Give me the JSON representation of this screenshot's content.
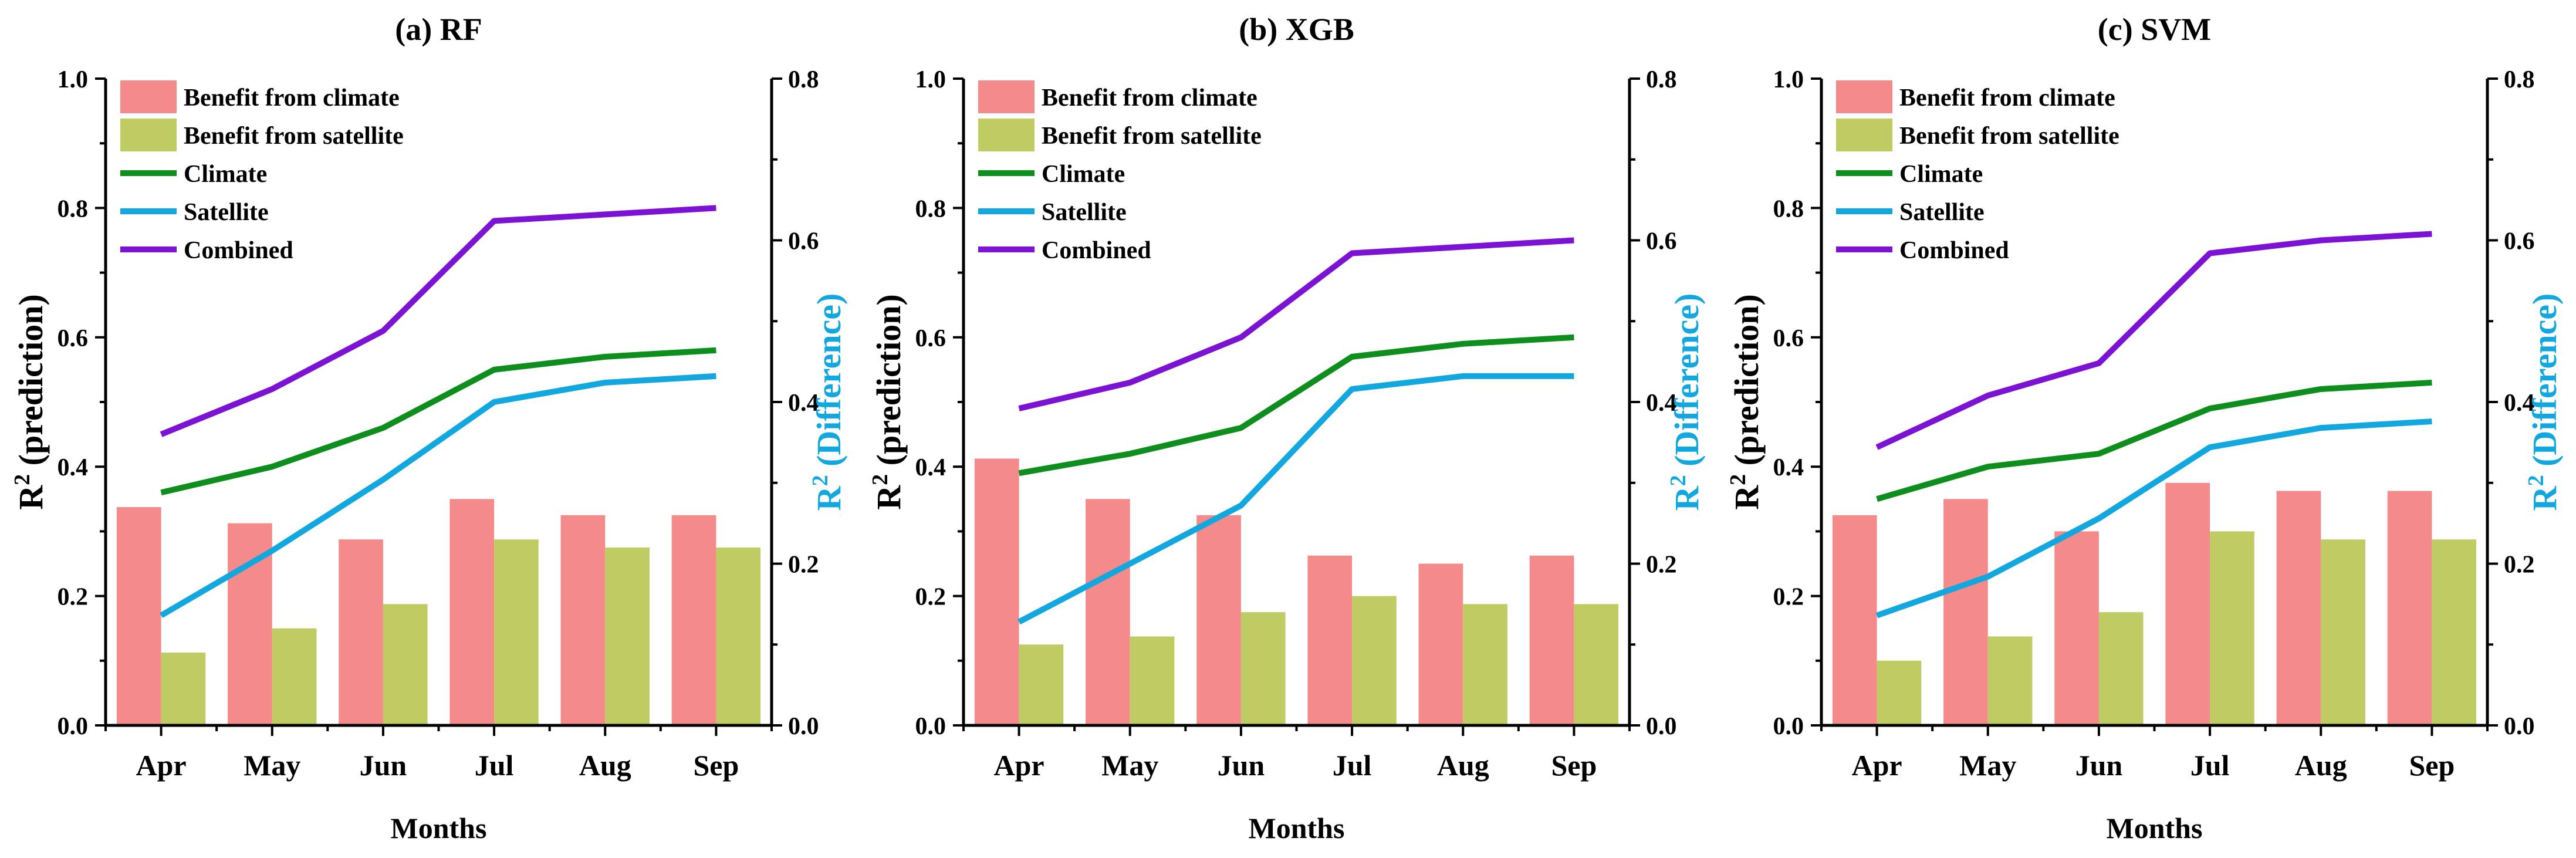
{
  "figure": {
    "colors": {
      "climate_bar": "#F48A8A",
      "satellite_bar": "#BFCC63",
      "climate_line": "#0E8E1C",
      "satellite_line": "#12A7DF",
      "combined_line": "#7B12D4",
      "right_axis_label": "#12A7DF",
      "axis": "#000000"
    }
  },
  "chart_data": [
    {
      "type": "bar+line",
      "title": "(a) RF",
      "xlabel": "Months",
      "ylabel_left": "R² (prediction)",
      "ylabel_left_parts": {
        "base": "R",
        "sup": "2",
        "rest": " (prediction)"
      },
      "ylabel_right": "R² (Difference)",
      "ylabel_right_parts": {
        "base": "R",
        "sup": "2",
        "rest": " (Difference)"
      },
      "ylim_left": [
        0,
        1.0
      ],
      "ylim_right": [
        0,
        0.8
      ],
      "yticks_left": [
        "0.0",
        "0.2",
        "0.4",
        "0.6",
        "0.8",
        "1.0"
      ],
      "yticks_right": [
        "0.0",
        "0.2",
        "0.4",
        "0.6",
        "0.8"
      ],
      "categories": [
        "Apr",
        "May",
        "Jun",
        "Jul",
        "Aug",
        "Sep"
      ],
      "legend": [
        "Benefit from climate",
        "Benefit from satellite",
        "Climate",
        "Satellite",
        "Combined"
      ],
      "bars": [
        {
          "name": "Benefit from climate",
          "axis": "right",
          "values": [
            0.27,
            0.25,
            0.23,
            0.28,
            0.26,
            0.26
          ]
        },
        {
          "name": "Benefit from satellite",
          "axis": "right",
          "values": [
            0.09,
            0.12,
            0.15,
            0.23,
            0.22,
            0.22
          ]
        }
      ],
      "series": [
        {
          "name": "Climate",
          "axis": "left",
          "values": [
            0.36,
            0.4,
            0.46,
            0.55,
            0.57,
            0.58
          ]
        },
        {
          "name": "Satellite",
          "axis": "left",
          "values": [
            0.17,
            0.27,
            0.38,
            0.5,
            0.53,
            0.54
          ]
        },
        {
          "name": "Combined",
          "axis": "left",
          "values": [
            0.45,
            0.52,
            0.61,
            0.78,
            0.79,
            0.8
          ]
        }
      ]
    },
    {
      "type": "bar+line",
      "title": "(b) XGB",
      "xlabel": "Months",
      "ylabel_left": "R² (prediction)",
      "ylabel_left_parts": {
        "base": "R",
        "sup": "2",
        "rest": " (prediction)"
      },
      "ylabel_right": "R² (Difference)",
      "ylabel_right_parts": {
        "base": "R",
        "sup": "2",
        "rest": " (Difference)"
      },
      "ylim_left": [
        0,
        1.0
      ],
      "ylim_right": [
        0,
        0.8
      ],
      "yticks_left": [
        "0.0",
        "0.2",
        "0.4",
        "0.6",
        "0.8",
        "1.0"
      ],
      "yticks_right": [
        "0.0",
        "0.2",
        "0.4",
        "0.6",
        "0.8"
      ],
      "categories": [
        "Apr",
        "May",
        "Jun",
        "Jul",
        "Aug",
        "Sep"
      ],
      "legend": [
        "Benefit from climate",
        "Benefit from satellite",
        "Climate",
        "Satellite",
        "Combined"
      ],
      "bars": [
        {
          "name": "Benefit from climate",
          "axis": "right",
          "values": [
            0.33,
            0.28,
            0.26,
            0.21,
            0.2,
            0.21
          ]
        },
        {
          "name": "Benefit from satellite",
          "axis": "right",
          "values": [
            0.1,
            0.11,
            0.14,
            0.16,
            0.15,
            0.15
          ]
        }
      ],
      "series": [
        {
          "name": "Climate",
          "axis": "left",
          "values": [
            0.39,
            0.42,
            0.46,
            0.57,
            0.59,
            0.6
          ]
        },
        {
          "name": "Satellite",
          "axis": "left",
          "values": [
            0.16,
            0.25,
            0.34,
            0.52,
            0.54,
            0.54
          ]
        },
        {
          "name": "Combined",
          "axis": "left",
          "values": [
            0.49,
            0.53,
            0.6,
            0.73,
            0.74,
            0.75
          ]
        }
      ]
    },
    {
      "type": "bar+line",
      "title": "(c) SVM",
      "xlabel": "Months",
      "ylabel_left": "R² (prediction)",
      "ylabel_left_parts": {
        "base": "R",
        "sup": "2",
        "rest": " (prediction)"
      },
      "ylabel_right": "R² (Difference)",
      "ylabel_right_parts": {
        "base": "R",
        "sup": "2",
        "rest": " (Difference)"
      },
      "ylim_left": [
        0,
        1.0
      ],
      "ylim_right": [
        0,
        0.8
      ],
      "yticks_left": [
        "0.0",
        "0.2",
        "0.4",
        "0.6",
        "0.8",
        "1.0"
      ],
      "yticks_right": [
        "0.0",
        "0.2",
        "0.4",
        "0.6",
        "0.8"
      ],
      "categories": [
        "Apr",
        "May",
        "Jun",
        "Jul",
        "Aug",
        "Sep"
      ],
      "legend": [
        "Benefit from climate",
        "Benefit from satellite",
        "Climate",
        "Satellite",
        "Combined"
      ],
      "bars": [
        {
          "name": "Benefit from climate",
          "axis": "right",
          "values": [
            0.26,
            0.28,
            0.24,
            0.3,
            0.29,
            0.29
          ]
        },
        {
          "name": "Benefit from satellite",
          "axis": "right",
          "values": [
            0.08,
            0.11,
            0.14,
            0.24,
            0.23,
            0.23
          ]
        }
      ],
      "series": [
        {
          "name": "Climate",
          "axis": "left",
          "values": [
            0.35,
            0.4,
            0.42,
            0.49,
            0.52,
            0.53
          ]
        },
        {
          "name": "Satellite",
          "axis": "left",
          "values": [
            0.17,
            0.23,
            0.32,
            0.43,
            0.46,
            0.47
          ]
        },
        {
          "name": "Combined",
          "axis": "left",
          "values": [
            0.43,
            0.51,
            0.56,
            0.73,
            0.75,
            0.76
          ]
        }
      ]
    }
  ]
}
